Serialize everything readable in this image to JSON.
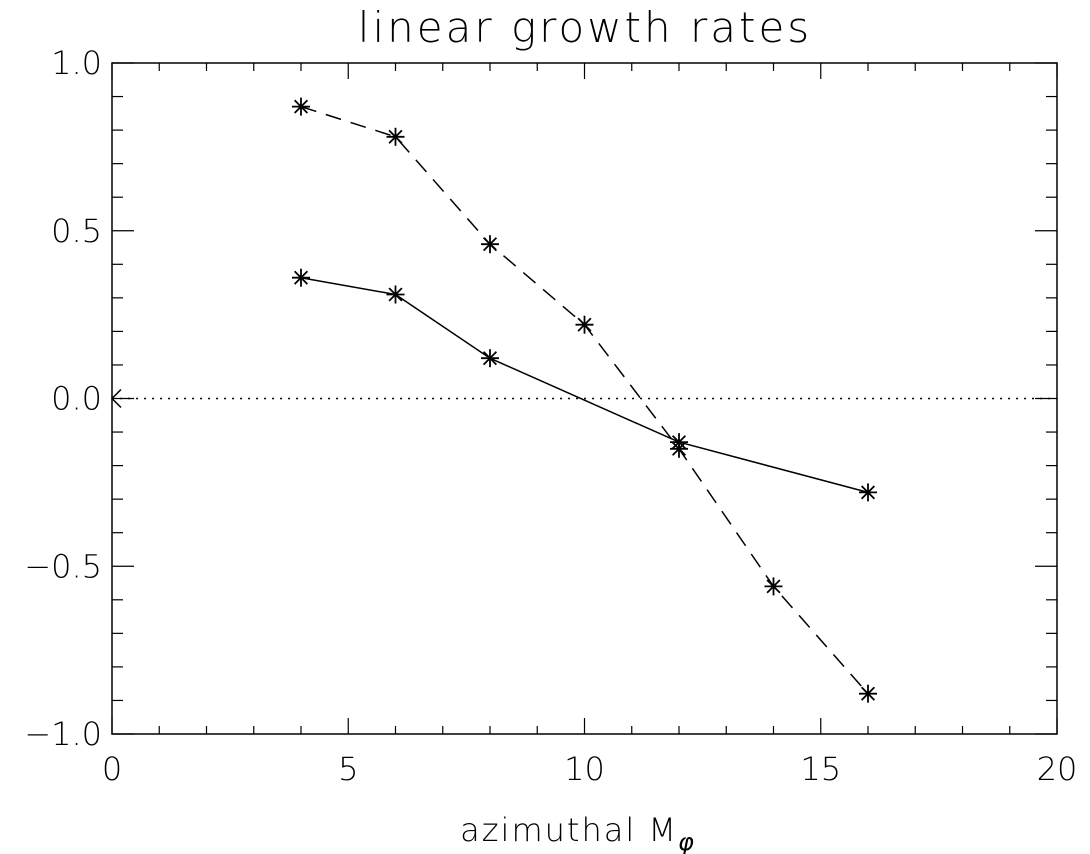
{
  "chart_data": {
    "type": "line",
    "title": "linear growth rates",
    "xlabel": "azimuthal M",
    "xlabel_subscript": "φ",
    "ylabel": "",
    "xlim": [
      0,
      20
    ],
    "ylim": [
      -1.0,
      1.0
    ],
    "x_ticks": [
      0,
      5,
      10,
      15,
      20
    ],
    "x_tick_labels": [
      "0",
      "5",
      "10",
      "15",
      "20"
    ],
    "y_ticks": [
      -1.0,
      -0.5,
      0.0,
      0.5,
      1.0
    ],
    "y_tick_labels": [
      "−1.0",
      "−0.5",
      "0.0",
      "0.5",
      "1.0"
    ],
    "x_minor_step": 1,
    "y_minor_step": 0.1,
    "reference_line": {
      "y": 0.0,
      "style": "dotted",
      "marker_x": 0
    },
    "grid": false,
    "legend": "none",
    "series": [
      {
        "style": "solid",
        "marker": "asterisk",
        "x": [
          4,
          6,
          8,
          12,
          16
        ],
        "y": [
          0.36,
          0.31,
          0.12,
          -0.13,
          -0.28
        ]
      },
      {
        "style": "dashed",
        "marker": "asterisk",
        "x": [
          4,
          6,
          8,
          10,
          12,
          14,
          16
        ],
        "y": [
          0.87,
          0.78,
          0.46,
          0.22,
          -0.15,
          -0.56,
          -0.88
        ]
      }
    ]
  }
}
